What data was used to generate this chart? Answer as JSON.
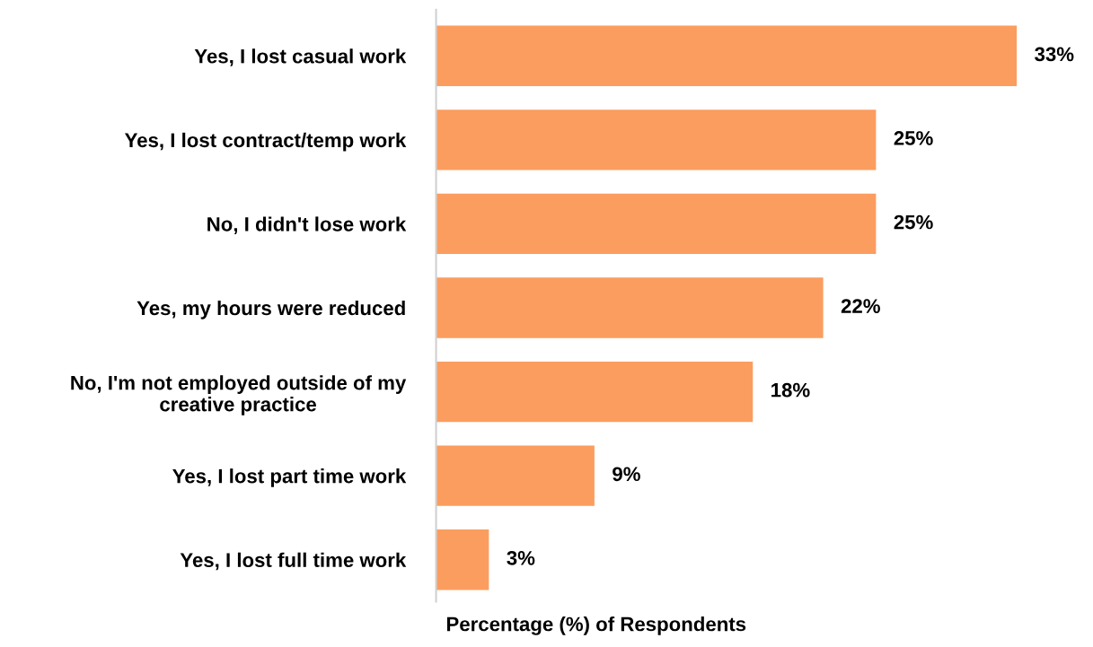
{
  "chart_data": {
    "type": "bar",
    "orientation": "horizontal",
    "xlabel": "Percentage (%) of Respondents",
    "categories": [
      "Yes, I lost casual work",
      "Yes, I lost contract/temp work",
      "No, I didn't lose work",
      "Yes, my hours were reduced",
      "No, I'm not employed outside of my\ncreative practice",
      "Yes, I lost part time work",
      "Yes, I lost full time work"
    ],
    "values": [
      33,
      25,
      25,
      22,
      18,
      9,
      3
    ],
    "value_labels": [
      "33%",
      "25%",
      "25%",
      "22%",
      "18%",
      "9%",
      "3%"
    ],
    "color": "#fb9d5f",
    "grid": false,
    "legend": false,
    "tick_labels": "y"
  }
}
